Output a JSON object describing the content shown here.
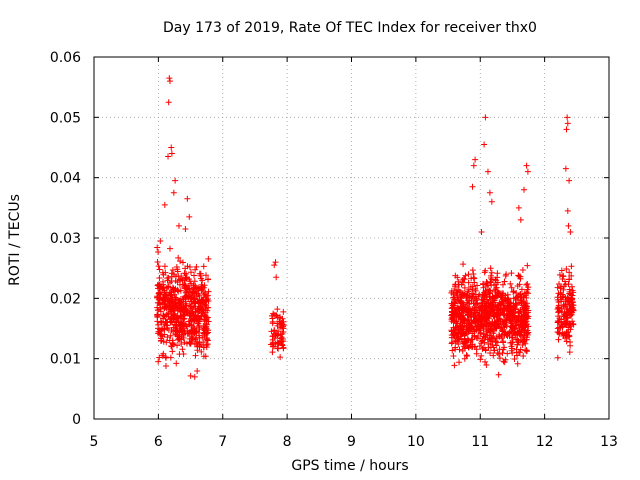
{
  "chart_data": {
    "type": "scatter",
    "title": "Day 173 of 2019, Rate Of TEC Index for receiver thx0",
    "xlabel": "GPS time / hours",
    "ylabel": "ROTI / TECUs",
    "xlim": [
      5,
      13
    ],
    "ylim": [
      0,
      0.06
    ],
    "x_ticks": [
      "5",
      "6",
      "7",
      "8",
      "9",
      "10",
      "11",
      "12",
      "13"
    ],
    "y_ticks": [
      "0",
      "0.01",
      "0.02",
      "0.03",
      "0.04",
      "0.05",
      "0.06"
    ],
    "grid": true,
    "marker": "+",
    "series": [
      {
        "name": "ROTI",
        "clusters": [
          {
            "x_range": [
              5.98,
              6.78
            ],
            "y_range": [
              0.006,
              0.03
            ],
            "count": 650
          },
          {
            "x_range": [
              7.75,
              7.95
            ],
            "y_range": [
              0.008,
              0.02
            ],
            "count": 70
          },
          {
            "x_range": [
              10.55,
              11.75
            ],
            "y_range": [
              0.006,
              0.028
            ],
            "count": 1000
          },
          {
            "x_range": [
              12.2,
              12.45
            ],
            "y_range": [
              0.008,
              0.028
            ],
            "count": 160
          }
        ],
        "outliers": [
          {
            "x": 6.17,
            "y": 0.0565
          },
          {
            "x": 6.18,
            "y": 0.056
          },
          {
            "x": 6.16,
            "y": 0.0525
          },
          {
            "x": 6.2,
            "y": 0.045
          },
          {
            "x": 6.15,
            "y": 0.0435
          },
          {
            "x": 6.21,
            "y": 0.044
          },
          {
            "x": 6.26,
            "y": 0.0395
          },
          {
            "x": 6.24,
            "y": 0.0375
          },
          {
            "x": 6.1,
            "y": 0.0355
          },
          {
            "x": 6.45,
            "y": 0.0365
          },
          {
            "x": 6.48,
            "y": 0.0335
          },
          {
            "x": 6.03,
            "y": 0.0295
          },
          {
            "x": 6.32,
            "y": 0.032
          },
          {
            "x": 6.42,
            "y": 0.0315
          },
          {
            "x": 7.82,
            "y": 0.026
          },
          {
            "x": 7.8,
            "y": 0.0255
          },
          {
            "x": 7.83,
            "y": 0.0235
          },
          {
            "x": 11.08,
            "y": 0.05
          },
          {
            "x": 11.06,
            "y": 0.0455
          },
          {
            "x": 10.92,
            "y": 0.043
          },
          {
            "x": 10.9,
            "y": 0.042
          },
          {
            "x": 11.12,
            "y": 0.041
          },
          {
            "x": 10.88,
            "y": 0.0385
          },
          {
            "x": 11.15,
            "y": 0.0375
          },
          {
            "x": 11.18,
            "y": 0.036
          },
          {
            "x": 11.72,
            "y": 0.042
          },
          {
            "x": 11.74,
            "y": 0.041
          },
          {
            "x": 11.68,
            "y": 0.038
          },
          {
            "x": 11.6,
            "y": 0.035
          },
          {
            "x": 11.63,
            "y": 0.033
          },
          {
            "x": 11.02,
            "y": 0.031
          },
          {
            "x": 12.35,
            "y": 0.05
          },
          {
            "x": 12.36,
            "y": 0.049
          },
          {
            "x": 12.34,
            "y": 0.048
          },
          {
            "x": 12.33,
            "y": 0.0415
          },
          {
            "x": 12.38,
            "y": 0.0395
          },
          {
            "x": 12.36,
            "y": 0.0345
          },
          {
            "x": 12.37,
            "y": 0.032
          },
          {
            "x": 12.4,
            "y": 0.031
          }
        ]
      }
    ],
    "colors": {
      "series": "#ff0000",
      "axis": "#000000",
      "grid": "#a0a0a0"
    }
  }
}
